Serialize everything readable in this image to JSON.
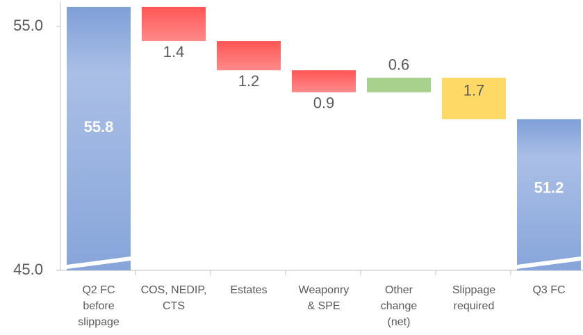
{
  "chart_data": {
    "type": "waterfall",
    "categories": [
      "Q2 FC\nbefore\nslippage",
      "COS, NEDIP,\nCTS",
      "Estates",
      "Weaponry\n& SPE",
      "Other\nchange\n(net)",
      "Slippage\nrequired",
      "Q3 FC"
    ],
    "values": [
      55.8,
      -1.4,
      -1.2,
      -0.9,
      0.6,
      -1.7,
      51.2
    ],
    "value_labels": [
      "55.8",
      "1.4",
      "1.2",
      "0.9",
      "0.6",
      "1.7",
      "51.2"
    ],
    "colors": [
      "#8eaadb",
      "#ff6262",
      "#ff6262",
      "#ff6262",
      "#a9d18e",
      "#ffd966",
      "#8eaadb"
    ],
    "totals": [
      0,
      6
    ],
    "ylim": [
      45,
      56
    ],
    "yticks": [
      {
        "value": 45,
        "label": "45.0"
      },
      {
        "value": 55,
        "label": "55.0"
      }
    ]
  }
}
